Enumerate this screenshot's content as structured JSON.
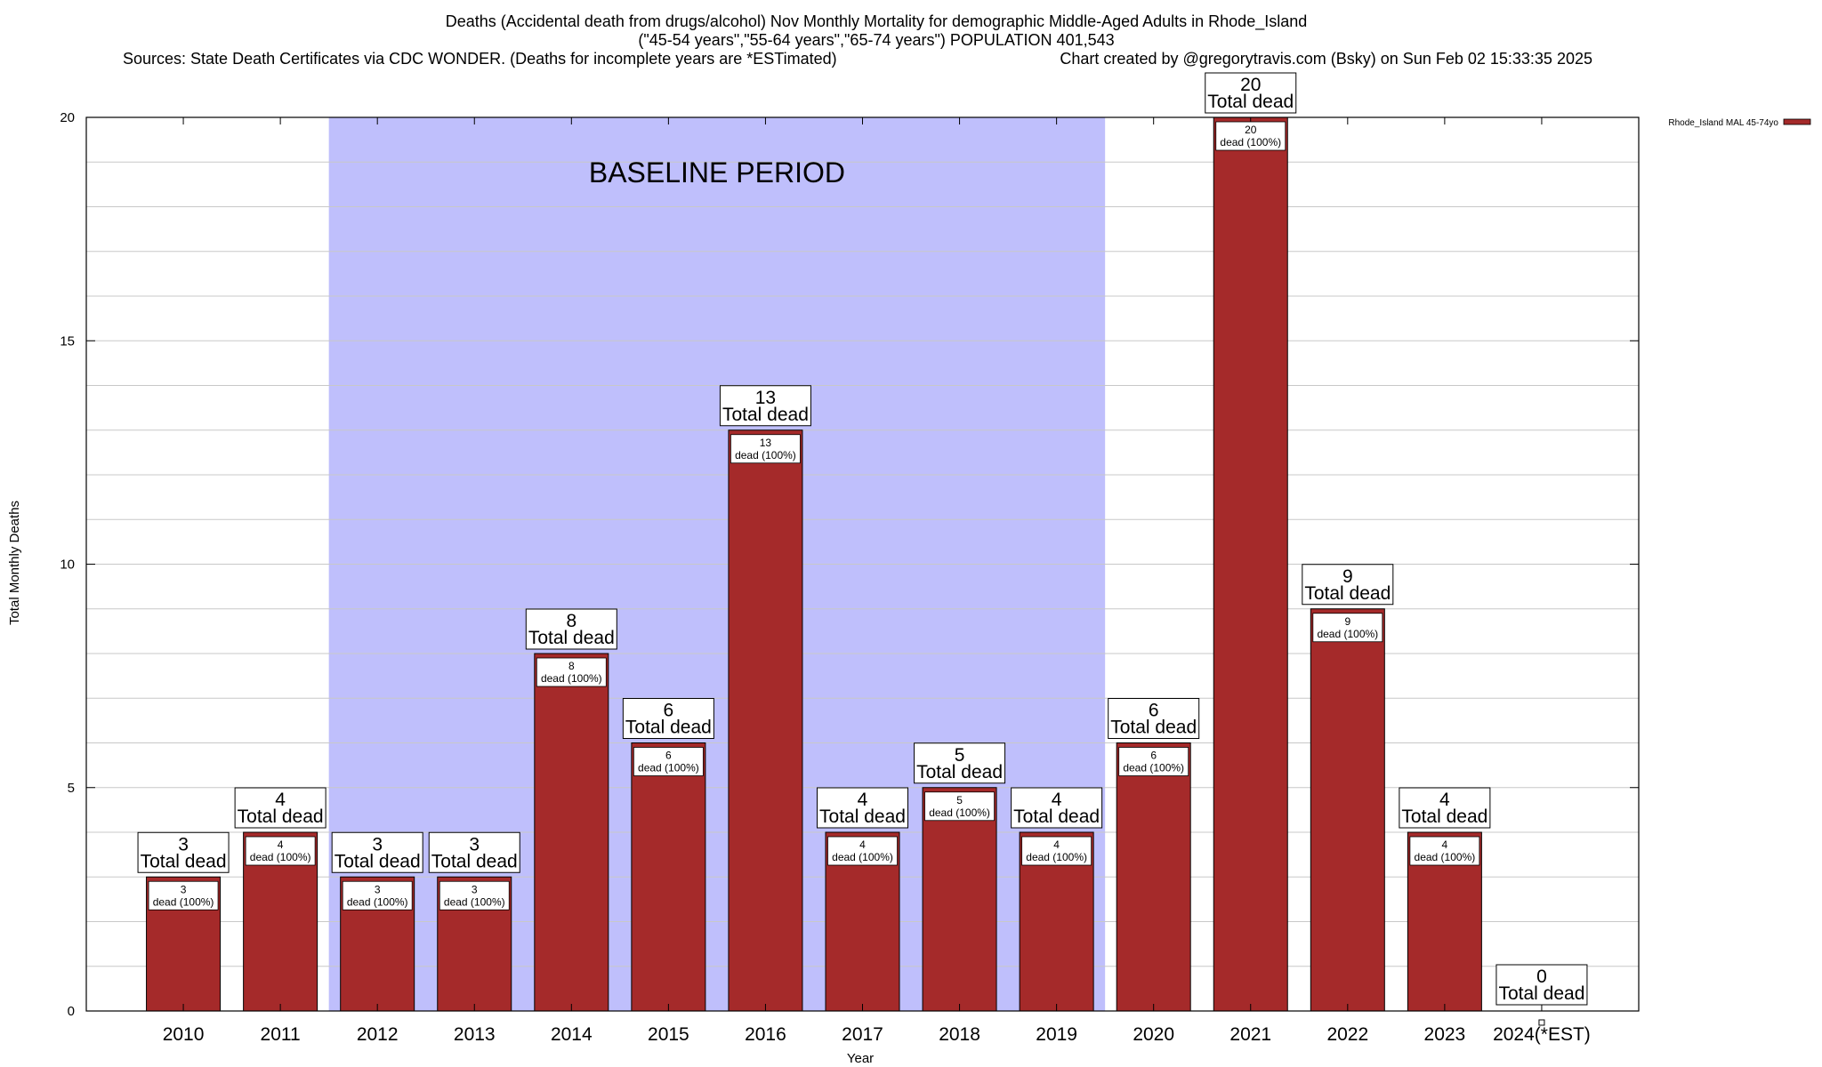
{
  "chart_data": {
    "type": "bar",
    "title_lines": [
      "Deaths (Accidental death from drugs/alcohol) Nov Monthly Mortality for demographic Middle-Aged Adults in Rhode_Island",
      "(\"45-54 years\",\"55-64 years\",\"65-74 years\") POPULATION 401,543"
    ],
    "source_text": "Sources: State Death Certificates via CDC WONDER. (Deaths for incomplete years are *ESTimated)",
    "credit_text": "Chart created by @gregorytravis.com (Bsky) on Sun Feb 02 15:33:35 2025",
    "xlabel": "Year",
    "ylabel": "Total Monthly Deaths",
    "categories": [
      "2010",
      "2011",
      "2012",
      "2013",
      "2014",
      "2015",
      "2016",
      "2017",
      "2018",
      "2019",
      "2020",
      "2021",
      "2022",
      "2023",
      "2024(*EST)"
    ],
    "series": [
      {
        "name": "Rhode_Island MAL 45-74yo",
        "values": [
          3,
          4,
          3,
          3,
          8,
          6,
          13,
          4,
          5,
          4,
          6,
          20,
          9,
          4,
          0
        ]
      }
    ],
    "total_label_suffix": "Total dead",
    "inner_label_suffix": "dead (100%)",
    "ylim": [
      0,
      20
    ],
    "yticks": [
      0,
      5,
      10,
      15,
      20
    ],
    "grid": true,
    "legend_position": "top-right",
    "annotation": {
      "text": "BASELINE PERIOD",
      "x_range": [
        "2012",
        "2019"
      ]
    },
    "colors": {
      "bar": "#a52a2a",
      "baseline_band": "#bfbffc",
      "background": "#ffffff"
    }
  }
}
